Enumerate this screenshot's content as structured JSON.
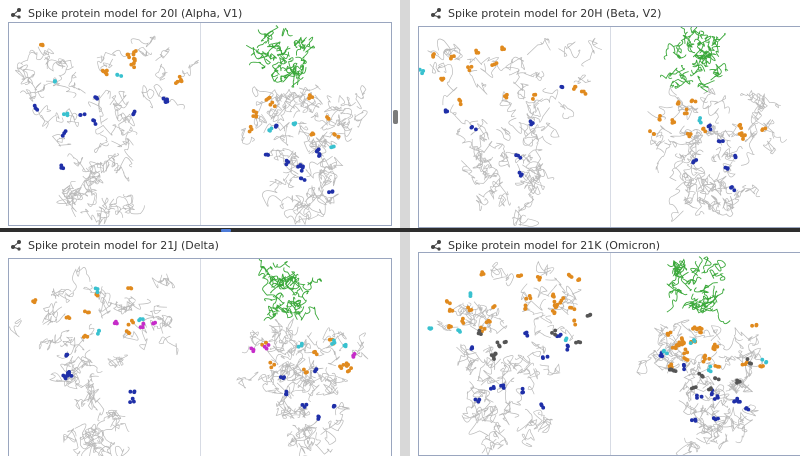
{
  "panels": [
    {
      "id": "alpha",
      "title": "Spike protein model for 20I (Alpha, V1)",
      "icon": "molecule-icon"
    },
    {
      "id": "beta",
      "title": "Spike protein model for 20H (Beta, V2)",
      "icon": "molecule-icon"
    },
    {
      "id": "delta",
      "title": "Spike protein model for 21J (Delta)",
      "icon": "molecule-icon"
    },
    {
      "id": "omicron",
      "title": "Spike protein model for 21K (Omicron)",
      "icon": "molecule-icon"
    }
  ],
  "colors": {
    "backbone": "#b9b9b9",
    "ace2": "#3aa83a",
    "mutation_orange": "#e08a1e",
    "mutation_blue": "#1f2fa8",
    "mutation_cyan": "#39c1cf",
    "mutation_magenta": "#c62cc9",
    "omicron_dark": "#555555",
    "viewer_border": "#9aa6bf"
  }
}
